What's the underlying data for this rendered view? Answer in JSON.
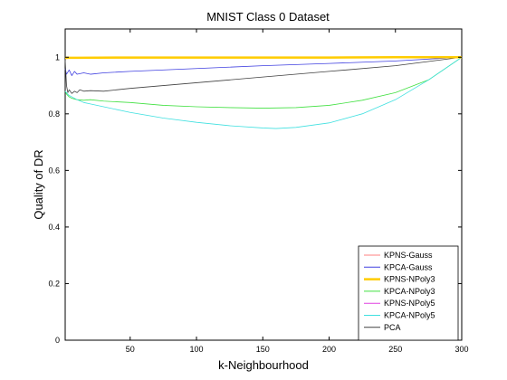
{
  "chart_data": {
    "type": "line",
    "title": "MNIST Class 0 Dataset",
    "xlabel": "k-Neighbourhood",
    "ylabel": "Quality of DR",
    "xlim": [
      1,
      300
    ],
    "ylim": [
      0,
      1.1
    ],
    "xticks": [
      50,
      100,
      150,
      200,
      250,
      300
    ],
    "yticks": [
      0,
      0.2,
      0.4,
      0.6,
      0.8,
      1
    ],
    "ytick_labels": [
      "0",
      "0.2",
      "0.4",
      "0.6",
      "0.8",
      "1"
    ],
    "grid": false,
    "legend_position": "bottom-right",
    "series": [
      {
        "name": "KPNS-Gauss",
        "color": "#ff8080",
        "stroke_width": 0.8,
        "x": [
          1,
          5,
          10,
          20,
          50,
          100,
          150,
          200,
          250,
          300
        ],
        "y": [
          0.995,
          0.996,
          0.996,
          0.997,
          0.997,
          0.998,
          0.998,
          0.999,
          0.999,
          1.0
        ]
      },
      {
        "name": "KPCA-Gauss",
        "color": "#4040e0",
        "stroke_width": 0.8,
        "x": [
          1,
          2,
          4,
          6,
          8,
          10,
          15,
          20,
          30,
          50,
          100,
          150,
          200,
          250,
          300
        ],
        "y": [
          0.96,
          0.94,
          0.955,
          0.935,
          0.95,
          0.94,
          0.945,
          0.94,
          0.945,
          0.95,
          0.96,
          0.97,
          0.978,
          0.987,
          1.0
        ]
      },
      {
        "name": "KPNS-NPoly3",
        "color": "#ffcc00",
        "stroke_width": 2.5,
        "x": [
          1,
          5,
          10,
          50,
          100,
          150,
          200,
          250,
          300
        ],
        "y": [
          0.998,
          0.998,
          0.998,
          0.999,
          0.999,
          0.999,
          0.999,
          1.0,
          1.0
        ]
      },
      {
        "name": "KPCA-NPoly3",
        "color": "#40e040",
        "stroke_width": 0.8,
        "x": [
          1,
          2,
          4,
          6,
          10,
          15,
          20,
          30,
          50,
          75,
          100,
          125,
          150,
          175,
          200,
          225,
          250,
          275,
          300
        ],
        "y": [
          0.88,
          0.87,
          0.86,
          0.855,
          0.85,
          0.848,
          0.85,
          0.845,
          0.84,
          0.83,
          0.825,
          0.822,
          0.82,
          0.822,
          0.83,
          0.848,
          0.875,
          0.92,
          1.0
        ]
      },
      {
        "name": "KPNS-NPoly5",
        "color": "#e040e0",
        "stroke_width": 0.8,
        "x": [
          1,
          5,
          10,
          50,
          100,
          150,
          200,
          250,
          300
        ],
        "y": [
          0.997,
          0.997,
          0.997,
          0.998,
          0.998,
          0.999,
          0.999,
          0.999,
          1.0
        ]
      },
      {
        "name": "KPCA-NPoly5",
        "color": "#40e0e0",
        "stroke_width": 0.8,
        "x": [
          1,
          2,
          4,
          6,
          10,
          15,
          20,
          30,
          50,
          75,
          100,
          125,
          150,
          160,
          175,
          200,
          225,
          250,
          275,
          300
        ],
        "y": [
          0.88,
          0.875,
          0.865,
          0.86,
          0.85,
          0.84,
          0.835,
          0.825,
          0.805,
          0.785,
          0.77,
          0.758,
          0.75,
          0.748,
          0.752,
          0.768,
          0.8,
          0.85,
          0.92,
          1.0
        ]
      },
      {
        "name": "PCA",
        "color": "#404040",
        "stroke_width": 0.8,
        "x": [
          1,
          2,
          3,
          4,
          6,
          8,
          10,
          12,
          15,
          20,
          30,
          50,
          100,
          150,
          200,
          250,
          300
        ],
        "y": [
          0.99,
          0.9,
          0.875,
          0.885,
          0.872,
          0.88,
          0.875,
          0.885,
          0.88,
          0.882,
          0.88,
          0.89,
          0.91,
          0.93,
          0.95,
          0.97,
          1.0
        ]
      }
    ]
  }
}
